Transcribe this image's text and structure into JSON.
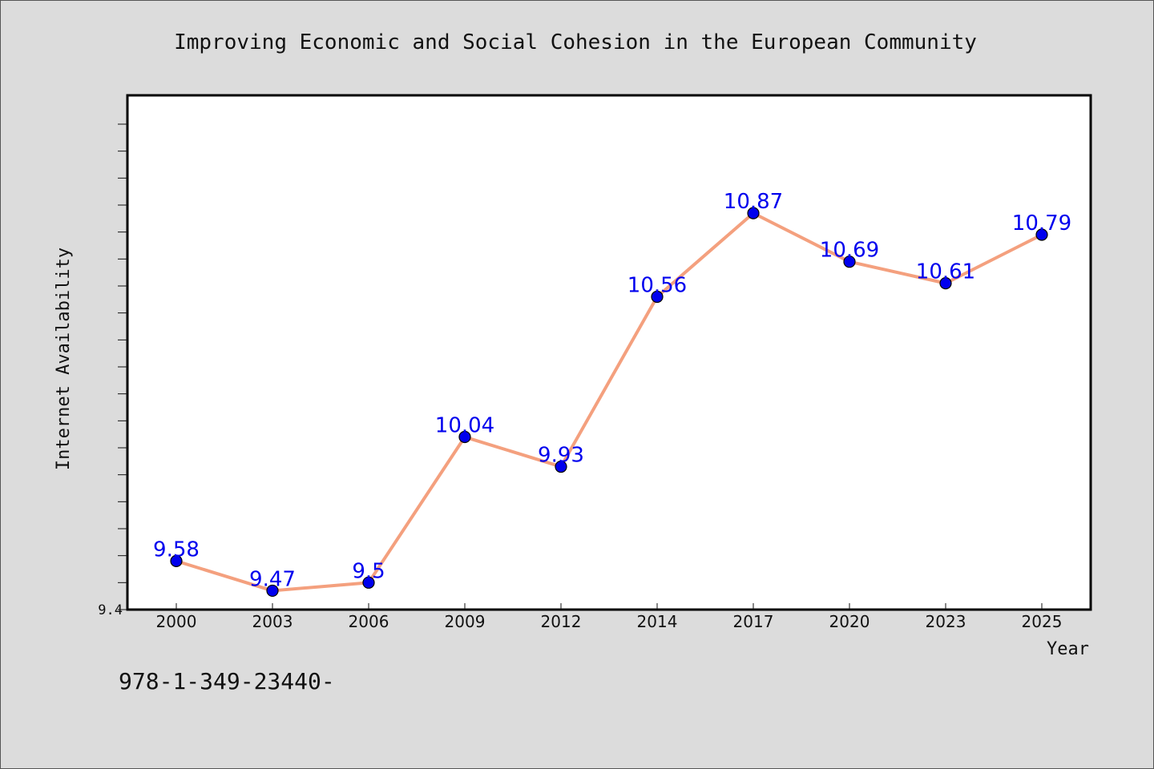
{
  "chart_data": {
    "type": "line",
    "title": "Improving Economic and Social Cohesion in the European Community",
    "xlabel": "Year",
    "ylabel": "Internet Availability",
    "categories": [
      "2000",
      "2003",
      "2006",
      "2009",
      "2012",
      "2014",
      "2017",
      "2020",
      "2023",
      "2025"
    ],
    "series": [
      {
        "values": [
          9.58,
          9.47,
          9.5,
          10.04,
          9.93,
          10.56,
          10.87,
          10.69,
          10.61,
          10.79
        ],
        "data_labels": [
          "9.58",
          "9.47",
          "9.5",
          "10.04",
          "9.93",
          "10.56",
          "10.87",
          "10.69",
          "10.61",
          "10.79"
        ]
      }
    ],
    "ylim": [
      9.4,
      11.2
    ],
    "yticks_labeled": [
      "9.4"
    ],
    "grid": false,
    "line_color": "#f4a07e",
    "marker_color": "#0000ee",
    "label_color": "#0000ee",
    "frame_background": "#dcdcdc",
    "plot_background": "#ffffff"
  },
  "footer": {
    "isbn": "978-1-349-23440-"
  }
}
